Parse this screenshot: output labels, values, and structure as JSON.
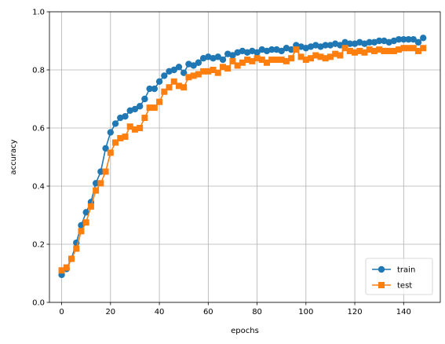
{
  "chart_data": {
    "type": "line",
    "title": "",
    "xlabel": "epochs",
    "ylabel": "accuracy",
    "xlim": [
      -5,
      155
    ],
    "ylim": [
      0,
      1.0
    ],
    "xticks": [
      0,
      20,
      40,
      60,
      80,
      100,
      120,
      140
    ],
    "yticks": [
      0.0,
      0.2,
      0.4,
      0.6,
      0.8,
      1.0
    ],
    "grid": true,
    "legend_position": "lower-right",
    "series": [
      {
        "name": "train",
        "color": "#1f77b4",
        "marker": "circle",
        "x": [
          0,
          2,
          4,
          6,
          8,
          10,
          12,
          14,
          16,
          18,
          20,
          22,
          24,
          26,
          28,
          30,
          32,
          34,
          36,
          38,
          40,
          42,
          44,
          46,
          48,
          50,
          52,
          54,
          56,
          58,
          60,
          62,
          64,
          66,
          68,
          70,
          72,
          74,
          76,
          78,
          80,
          82,
          84,
          86,
          88,
          90,
          92,
          94,
          96,
          98,
          100,
          102,
          104,
          106,
          108,
          110,
          112,
          114,
          116,
          118,
          120,
          122,
          124,
          126,
          128,
          130,
          132,
          134,
          136,
          138,
          140,
          142,
          144,
          146,
          148
        ],
        "values": [
          0.095,
          0.115,
          0.15,
          0.205,
          0.265,
          0.31,
          0.345,
          0.41,
          0.45,
          0.53,
          0.585,
          0.615,
          0.635,
          0.64,
          0.66,
          0.665,
          0.675,
          0.7,
          0.735,
          0.735,
          0.76,
          0.78,
          0.795,
          0.8,
          0.81,
          0.79,
          0.82,
          0.815,
          0.825,
          0.84,
          0.845,
          0.84,
          0.845,
          0.835,
          0.855,
          0.85,
          0.86,
          0.865,
          0.86,
          0.865,
          0.86,
          0.87,
          0.865,
          0.87,
          0.87,
          0.865,
          0.875,
          0.87,
          0.885,
          0.88,
          0.875,
          0.88,
          0.885,
          0.88,
          0.885,
          0.885,
          0.89,
          0.885,
          0.895,
          0.89,
          0.89,
          0.895,
          0.89,
          0.895,
          0.895,
          0.9,
          0.9,
          0.895,
          0.9,
          0.905,
          0.905,
          0.905,
          0.905,
          0.895,
          0.91
        ]
      },
      {
        "name": "test",
        "color": "#ff7f0e",
        "marker": "square",
        "x": [
          0,
          2,
          4,
          6,
          8,
          10,
          12,
          14,
          16,
          18,
          20,
          22,
          24,
          26,
          28,
          30,
          32,
          34,
          36,
          38,
          40,
          42,
          44,
          46,
          48,
          50,
          52,
          54,
          56,
          58,
          60,
          62,
          64,
          66,
          68,
          70,
          72,
          74,
          76,
          78,
          80,
          82,
          84,
          86,
          88,
          90,
          92,
          94,
          96,
          98,
          100,
          102,
          104,
          106,
          108,
          110,
          112,
          114,
          116,
          118,
          120,
          122,
          124,
          126,
          128,
          130,
          132,
          134,
          136,
          138,
          140,
          142,
          144,
          146,
          148
        ],
        "values": [
          0.11,
          0.12,
          0.15,
          0.185,
          0.245,
          0.275,
          0.33,
          0.385,
          0.41,
          0.45,
          0.515,
          0.55,
          0.565,
          0.57,
          0.605,
          0.595,
          0.6,
          0.635,
          0.67,
          0.67,
          0.69,
          0.725,
          0.74,
          0.76,
          0.745,
          0.74,
          0.775,
          0.78,
          0.785,
          0.795,
          0.795,
          0.8,
          0.79,
          0.81,
          0.805,
          0.83,
          0.815,
          0.825,
          0.835,
          0.83,
          0.84,
          0.835,
          0.825,
          0.835,
          0.835,
          0.835,
          0.83,
          0.84,
          0.87,
          0.845,
          0.835,
          0.84,
          0.85,
          0.845,
          0.84,
          0.845,
          0.855,
          0.85,
          0.875,
          0.865,
          0.86,
          0.865,
          0.86,
          0.87,
          0.865,
          0.87,
          0.865,
          0.865,
          0.865,
          0.87,
          0.875,
          0.875,
          0.875,
          0.865,
          0.875
        ]
      }
    ]
  }
}
